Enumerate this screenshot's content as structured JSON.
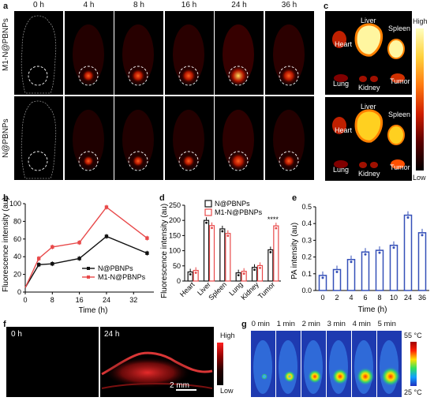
{
  "panels": {
    "a": {
      "label": "a",
      "timepoints": [
        "0 h",
        "4 h",
        "8 h",
        "16 h",
        "24 h",
        "36 h"
      ],
      "rows": [
        "M1-N@PBNPs",
        "N@PBNPs"
      ],
      "signal": [
        [
          0,
          0.45,
          0.55,
          0.6,
          0.95,
          0.65
        ],
        [
          0,
          0.35,
          0.4,
          0.45,
          0.7,
          0.45
        ]
      ]
    },
    "b": {
      "label": "b"
    },
    "c": {
      "label": "c",
      "organs": [
        "Heart",
        "Liver",
        "Spleen",
        "Lung",
        "Kidney",
        "Tumor"
      ],
      "scale_high": "High",
      "scale_low": "Low"
    },
    "d": {
      "label": "d",
      "significance": "****"
    },
    "e": {
      "label": "e"
    },
    "f": {
      "label": "f",
      "tiles": [
        "0 h",
        "24 h"
      ],
      "scale_high": "High",
      "scale_low": "Low",
      "scalebar": "2 mm"
    },
    "g": {
      "label": "g",
      "timepoints": [
        "0 min",
        "1 min",
        "2 min",
        "3 min",
        "4 min",
        "5 min"
      ],
      "temp_high": "55 °C",
      "temp_low": "25 °C",
      "heat": [
        0.1,
        0.45,
        0.6,
        0.75,
        0.85,
        0.95
      ]
    }
  },
  "chart_data": [
    {
      "panel": "b",
      "type": "line",
      "x": [
        0,
        4,
        8,
        16,
        24,
        36
      ],
      "series": [
        {
          "name": "N@PBNPs",
          "values": [
            5,
            31,
            32,
            38,
            63,
            44
          ],
          "color": "#111111"
        },
        {
          "name": "M1-N@PBNPs",
          "values": [
            5,
            38,
            51,
            56,
            96,
            61
          ],
          "color": "#e8494a"
        }
      ],
      "xlabel": "Time (h)",
      "ylabel": "Fluorescence intensity (au)",
      "xticks": [
        "0",
        "8",
        "16",
        "24",
        "32"
      ],
      "yticks": [
        "0",
        "20",
        "40",
        "60",
        "80",
        "100"
      ],
      "xlim": [
        0,
        38
      ],
      "ylim": [
        0,
        100
      ],
      "legend": "bottom-right"
    },
    {
      "panel": "d",
      "type": "bar",
      "categories": [
        "Heart",
        "Liver",
        "Spleen",
        "Lung",
        "Kidney",
        "Tumor"
      ],
      "series": [
        {
          "name": "N@PBNPs",
          "values": [
            30,
            200,
            172,
            27,
            45,
            103
          ],
          "color": "#111111"
        },
        {
          "name": "M1-N@PBNPs",
          "values": [
            35,
            183,
            157,
            32,
            51,
            182
          ],
          "color": "#e8494a"
        }
      ],
      "ylabel": "Fluorescence intensity (au)",
      "yticks": [
        "0",
        "50",
        "100",
        "150",
        "200",
        "250"
      ],
      "ylim": [
        0,
        250
      ],
      "legend": "top"
    },
    {
      "panel": "e",
      "type": "bar",
      "categories": [
        "0",
        "2",
        "4",
        "6",
        "8",
        "10",
        "24",
        "36"
      ],
      "values": [
        0.09,
        0.125,
        0.185,
        0.23,
        0.24,
        0.27,
        0.45,
        0.345
      ],
      "color": "#3550b8",
      "xlabel": "Time (h)",
      "ylabel": "PA intensity (au)",
      "yticks": [
        "0.0",
        "0.1",
        "0.2",
        "0.3",
        "0.4",
        "0.5"
      ],
      "ylim": [
        0,
        0.5
      ]
    }
  ]
}
